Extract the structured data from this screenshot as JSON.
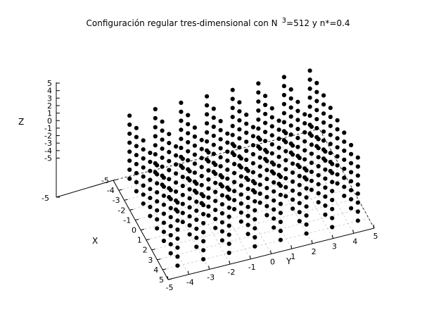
{
  "chart_data": {
    "type": "scatter",
    "title": "Configuración regular tres-dimensional con N",
    "title_sup": "3",
    "title_rest": "=512 y n*=0.4",
    "xlabel": "X",
    "ylabel": "Y",
    "zlabel": "Z",
    "xlim": [
      -5,
      5
    ],
    "ylim": [
      -5,
      5
    ],
    "zlim": [
      -5,
      5
    ],
    "x_ticks": [
      -5,
      -4,
      -3,
      -2,
      -1,
      0,
      1,
      2,
      3,
      4,
      5
    ],
    "y_ticks": [
      -5,
      -4,
      -3,
      -2,
      -1,
      0,
      1,
      2,
      3,
      4,
      5
    ],
    "z_ticks": [
      5,
      4,
      3,
      2,
      1,
      0,
      -1,
      -2,
      -3,
      -4,
      -5
    ],
    "base_z": -5,
    "grid": true,
    "lattice": {
      "n_per_axis": 8,
      "x_values": [
        -4.375,
        -3.125,
        -1.875,
        -0.625,
        0.625,
        1.875,
        3.125,
        4.375
      ],
      "y_values": [
        -4.375,
        -3.125,
        -1.875,
        -0.625,
        0.625,
        1.875,
        3.125,
        4.375
      ],
      "z_values": [
        -4.375,
        -3.125,
        -1.875,
        -0.625,
        0.625,
        1.875,
        3.125,
        4.375
      ]
    },
    "point_color": "#000000"
  }
}
